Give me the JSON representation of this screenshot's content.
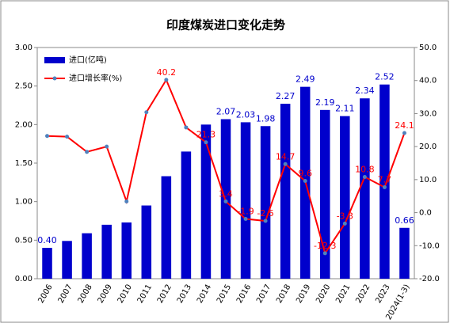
{
  "chart_data": {
    "type": "bar-line",
    "title": "印度煤炭进口变化走势",
    "categories": [
      "2006",
      "2007",
      "2008",
      "2009",
      "2010",
      "2011",
      "2012",
      "2013",
      "2014",
      "2015",
      "2016",
      "2017",
      "2018",
      "2019",
      "2020",
      "2021",
      "2022",
      "2023",
      "2024(1-3)"
    ],
    "series": [
      {
        "name": "进口(亿吨)",
        "type": "bar",
        "color": "#0000cc",
        "axis": "y",
        "values": [
          0.4,
          0.49,
          0.59,
          0.7,
          0.73,
          0.95,
          1.33,
          1.65,
          2.0,
          2.07,
          2.03,
          1.98,
          2.27,
          2.49,
          2.19,
          2.11,
          2.34,
          2.52,
          0.66
        ],
        "value_labels": [
          "0.40",
          null,
          null,
          null,
          null,
          null,
          null,
          null,
          null,
          "2.07",
          "2.03",
          "1.98",
          "2.27",
          "2.49",
          "2.19",
          "2.11",
          "2.34",
          "2.52",
          "0.66"
        ]
      },
      {
        "name": "进口增长率(%)",
        "type": "line",
        "color": "#ff0000",
        "marker_color": "#4f81bd",
        "axis": "y2",
        "values": [
          23.2,
          23.0,
          18.4,
          20.0,
          3.4,
          30.4,
          40.2,
          25.8,
          21.3,
          3.4,
          -1.9,
          -2.5,
          14.7,
          9.6,
          -12.3,
          -3.3,
          10.8,
          7.7,
          24.1
        ],
        "value_labels": [
          null,
          null,
          null,
          null,
          null,
          null,
          "40.2",
          null,
          "21.3",
          "3.4",
          "-1.9",
          "-2.5",
          "14.7",
          "9.6",
          "-12.3",
          "-3.3",
          "10.8",
          "7.7",
          "24.1"
        ]
      }
    ],
    "ylim": [
      0,
      3
    ],
    "yticks": [
      {
        "value": 0,
        "label": "0.00"
      },
      {
        "value": 0.5,
        "label": "0.50"
      },
      {
        "value": 1,
        "label": "1.00"
      },
      {
        "value": 1.5,
        "label": "1.50"
      },
      {
        "value": 2,
        "label": "2.00"
      },
      {
        "value": 2.5,
        "label": "2.50"
      },
      {
        "value": 3,
        "label": "3.00"
      }
    ],
    "y2lim": [
      -20,
      50
    ],
    "y2ticks": [
      {
        "value": -20,
        "label": "-20.0"
      },
      {
        "value": -10,
        "label": "-10.0"
      },
      {
        "value": 0,
        "label": "0.0"
      },
      {
        "value": 10,
        "label": "10.0"
      },
      {
        "value": 20,
        "label": "20.0"
      },
      {
        "value": 30,
        "label": "30.0"
      },
      {
        "value": 40,
        "label": "40.0"
      },
      {
        "value": 50,
        "label": "50.0"
      }
    ],
    "legend": "top-left"
  }
}
